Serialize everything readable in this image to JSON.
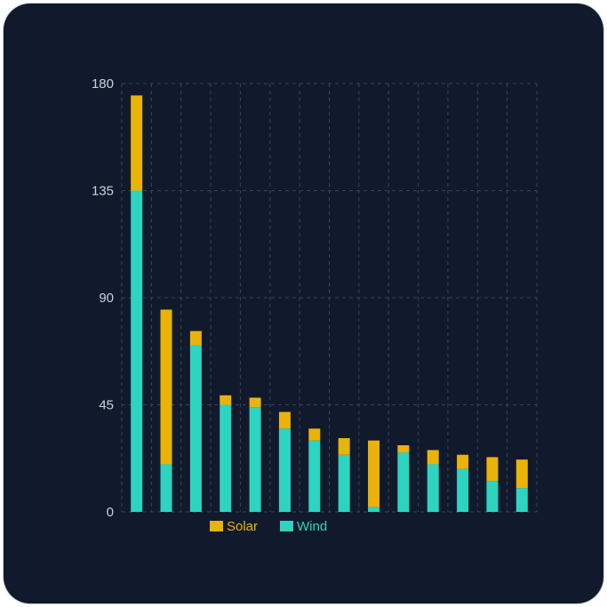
{
  "chart_data": {
    "type": "bar",
    "stacked": true,
    "title": "",
    "xlabel": "",
    "ylabel": "",
    "ylim": [
      0,
      180
    ],
    "yticks": [
      0,
      45,
      90,
      135,
      180
    ],
    "grid": true,
    "legend_position": "bottom-left",
    "categories": [
      "",
      "",
      "",
      "",
      "",
      "",
      "",
      "",
      "",
      "",
      "",
      "",
      "",
      ""
    ],
    "series": [
      {
        "name": "Wind",
        "color": "#2dd4bf",
        "values": [
          135,
          20,
          70,
          45,
          44,
          35,
          30,
          24,
          2,
          25,
          20,
          18,
          13,
          10
        ]
      },
      {
        "name": "Solar",
        "color": "#eab308",
        "values": [
          40,
          65,
          6,
          4,
          4,
          7,
          5,
          7,
          28,
          3,
          6,
          6,
          10,
          12
        ]
      }
    ]
  }
}
